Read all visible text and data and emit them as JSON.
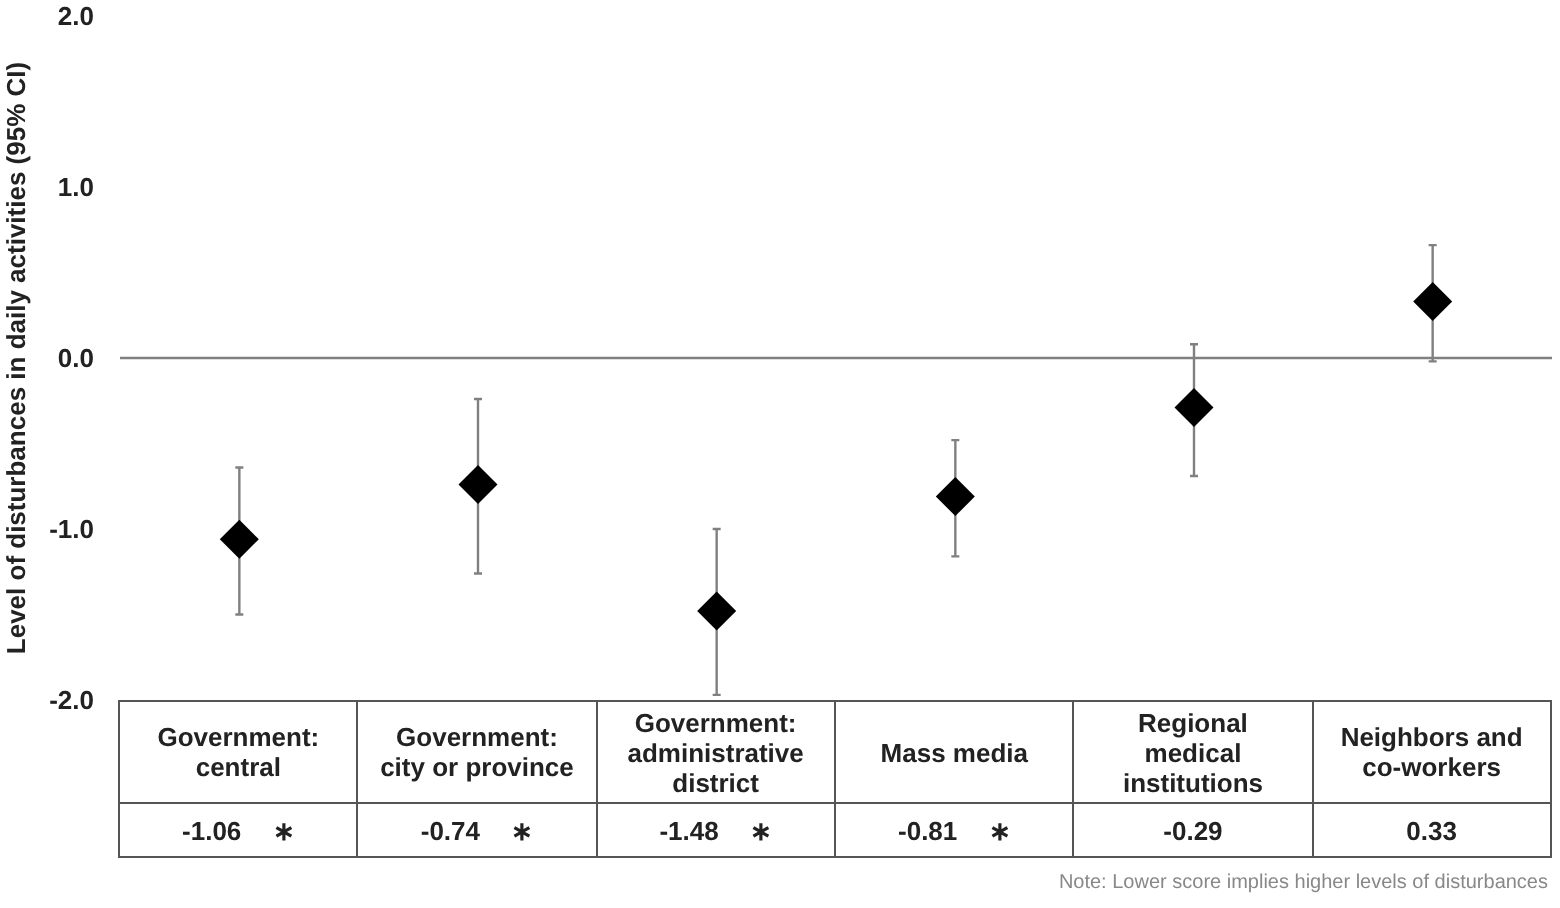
{
  "chart_data": {
    "type": "scatter",
    "ylabel": "Level of disturbances in daily activities (95% CI)",
    "categories": [
      "Government: central",
      "Government: city or province",
      "Government: administrative district",
      "Mass media",
      "Regional medical institutions",
      "Neighbors and co-workers"
    ],
    "values": [
      -1.06,
      -0.74,
      -1.48,
      -0.81,
      -0.29,
      0.33
    ],
    "color": "#000000",
    "errors": [
      [
        -1.5,
        -0.64
      ],
      [
        -1.26,
        -0.24
      ],
      [
        -1.97,
        -1.0
      ],
      [
        -1.16,
        -0.48
      ],
      [
        -0.69,
        0.08
      ],
      [
        -0.02,
        0.66
      ]
    ],
    "value_labels": [
      "-1.06 ∗",
      "-0.74 ∗",
      "-1.48 ∗",
      "-0.81 ∗",
      "-0.29",
      "0.33"
    ],
    "marker": "diamond",
    "ylim": [
      -2,
      2
    ],
    "yticks": [
      {
        "value": -2,
        "label": "-2.0"
      },
      {
        "value": -1,
        "label": "-1.0"
      },
      {
        "value": 0,
        "label": "0.0"
      },
      {
        "value": 1,
        "label": "1.0"
      },
      {
        "value": 2,
        "label": "2.0"
      }
    ],
    "ref_lines": [
      {
        "axis": "y",
        "value": 0,
        "color": "#808080"
      }
    ],
    "annotations": [
      "Note: Lower score implies higher levels of disturbances"
    ]
  }
}
